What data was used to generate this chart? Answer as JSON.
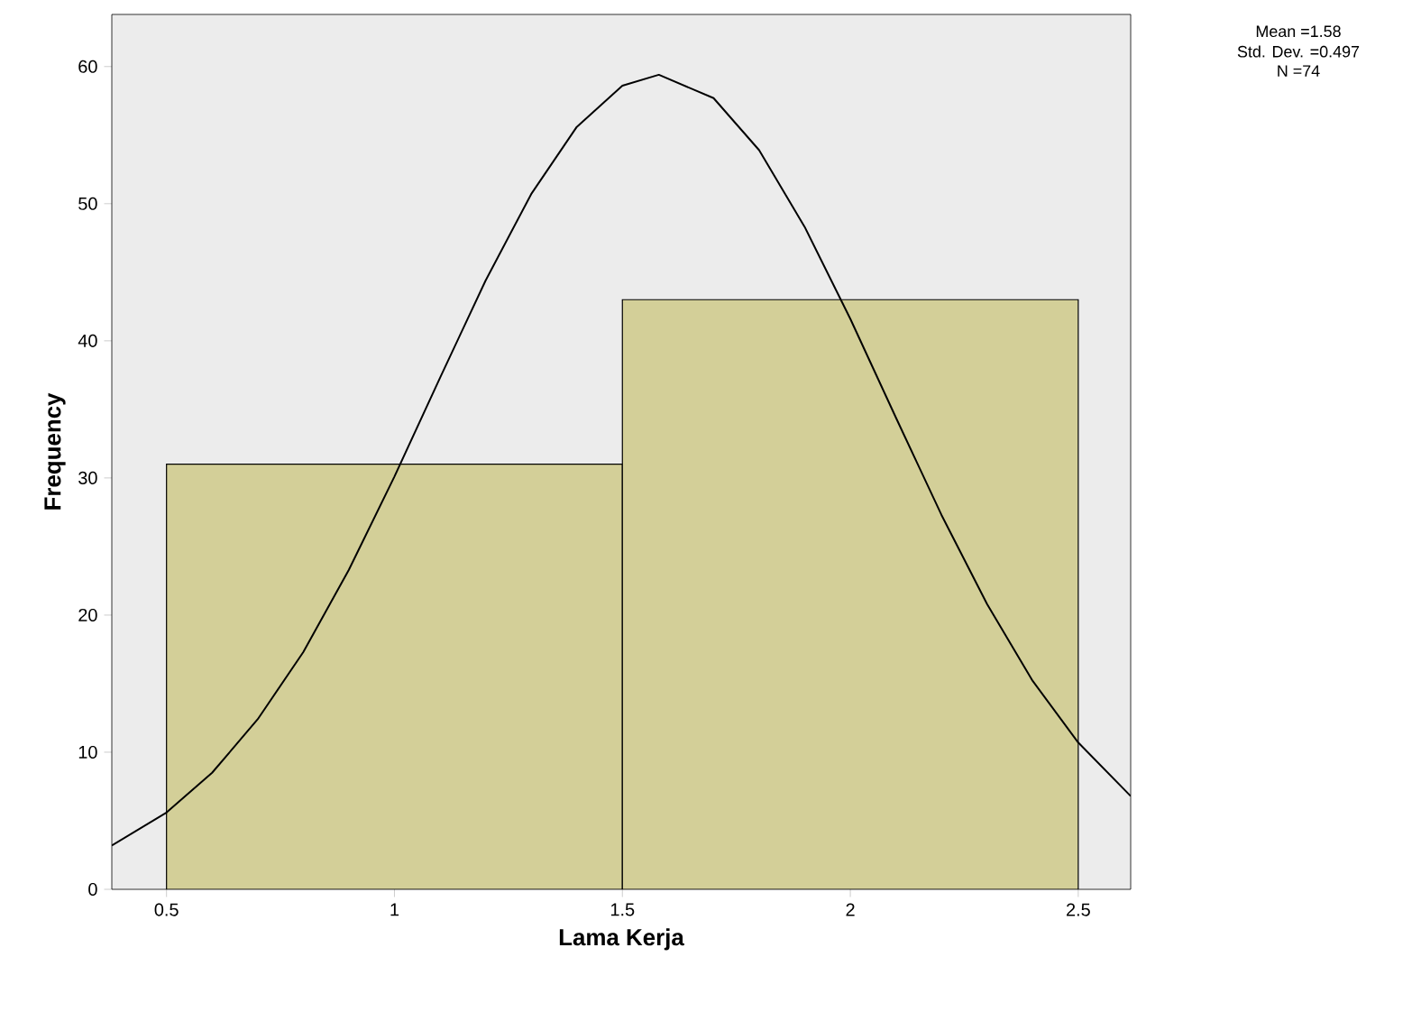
{
  "chart_data": {
    "type": "histogram",
    "xlabel": "Lama Kerja",
    "ylabel": "Frequency",
    "bins": [
      0.5,
      1.5,
      2.5
    ],
    "values": [
      31,
      43
    ],
    "color": "#d3cf98",
    "series": [
      {
        "type": "line",
        "color": "#000000",
        "x": [
          0.38,
          0.5,
          0.6,
          0.7,
          0.8,
          0.9,
          1.0,
          1.1,
          1.2,
          1.3,
          1.4,
          1.5,
          1.58,
          1.7,
          1.8,
          1.9,
          2.0,
          2.1,
          2.2,
          2.3,
          2.4,
          2.5,
          2.615
        ],
        "values": [
          3.2,
          5.6,
          8.5,
          12.4,
          17.3,
          23.3,
          30.1,
          37.3,
          44.4,
          50.7,
          55.6,
          58.6,
          59.4,
          57.7,
          53.9,
          48.3,
          41.6,
          34.4,
          27.3,
          20.8,
          15.2,
          10.7,
          6.8
        ]
      }
    ],
    "xlim": [
      0.38,
      2.615
    ],
    "ylim": [
      0,
      63.8
    ],
    "xticks": [
      0.5,
      1,
      1.5,
      2,
      2.5
    ],
    "yticks": [
      0,
      10,
      20,
      30,
      40,
      50,
      60
    ],
    "annotations": [
      "Mean =1.58",
      "Std. Dev. =0.497",
      "N =74"
    ]
  }
}
